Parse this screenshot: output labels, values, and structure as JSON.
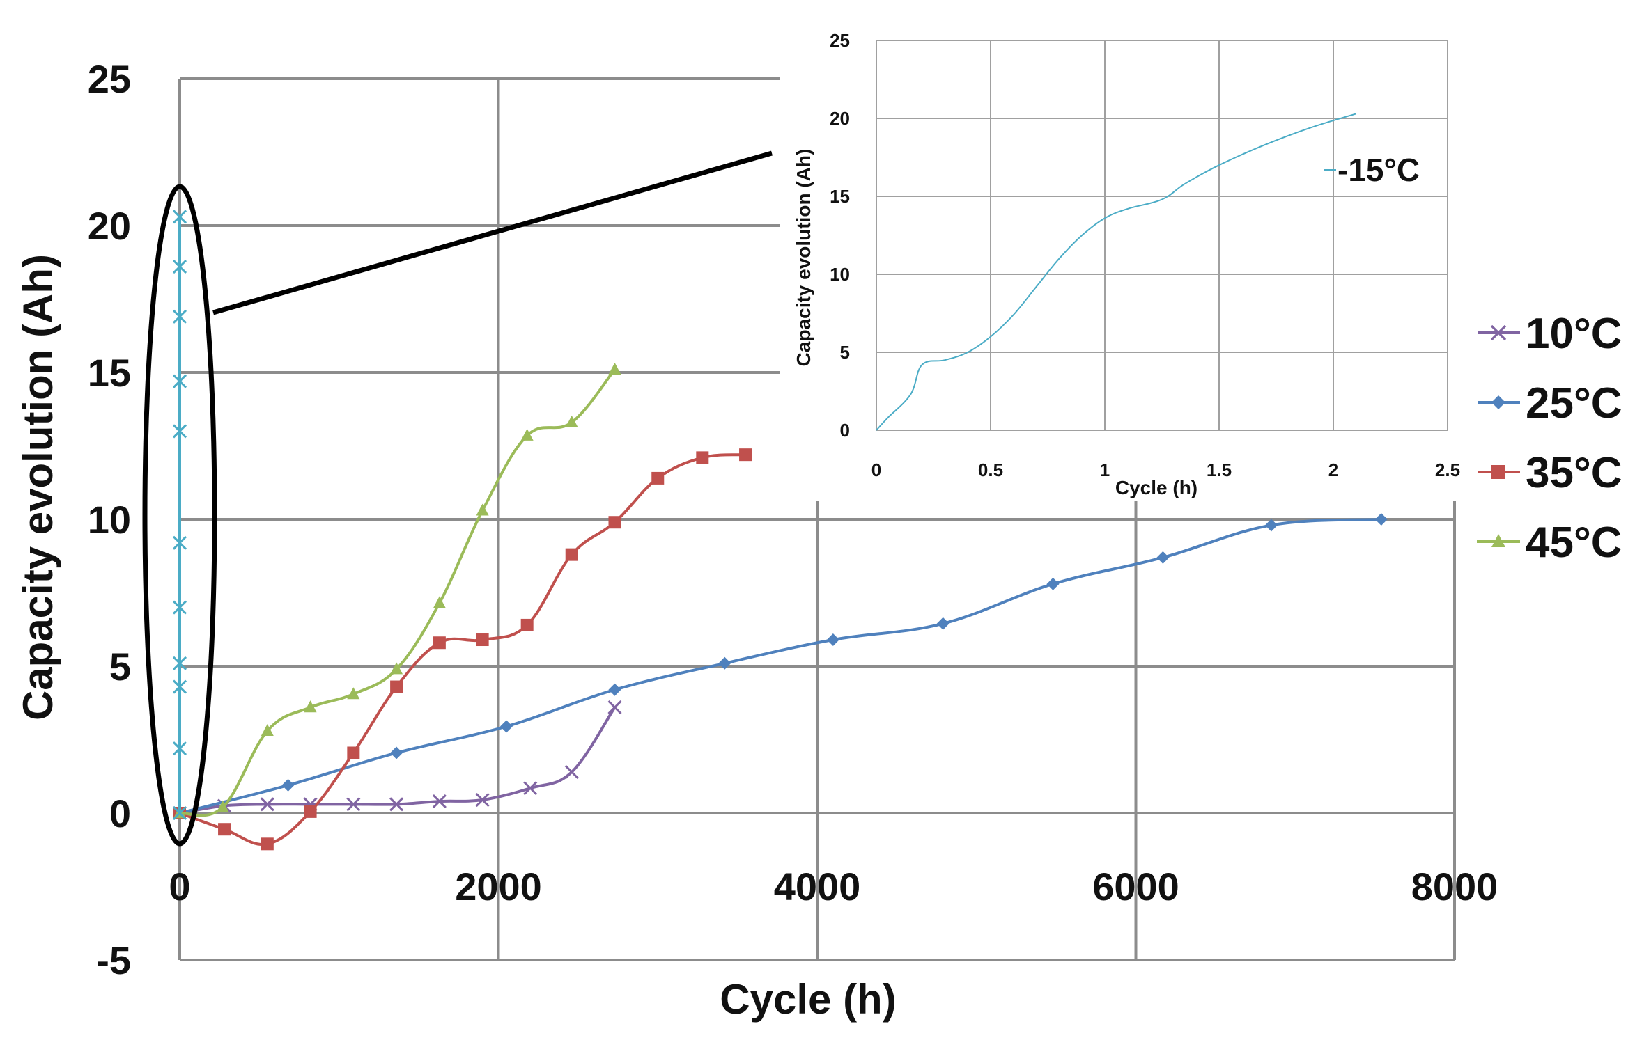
{
  "chart_data": [
    {
      "type": "line",
      "xlabel": "Cycle (h)",
      "ylabel": "Capacity evolution (Ah)",
      "xlim": [
        0,
        8000
      ],
      "ylim": [
        -5,
        25
      ],
      "x_ticks": [
        "0",
        "2000",
        "4000",
        "6000",
        "8000"
      ],
      "y_ticks": [
        "-5",
        "0",
        "5",
        "10",
        "15",
        "20",
        "25"
      ],
      "grid": true,
      "legend_position": "right",
      "series": [
        {
          "name": "10°C",
          "color": "#8064a2",
          "marker": "x",
          "x": [
            0,
            280,
            550,
            820,
            1090,
            1360,
            1630,
            1900,
            2200,
            2460,
            2730
          ],
          "y": [
            0,
            0.25,
            0.3,
            0.3,
            0.3,
            0.3,
            0.4,
            0.45,
            0.85,
            1.4,
            3.6
          ]
        },
        {
          "name": "25°C",
          "color": "#4f81bd",
          "marker": "diamond",
          "x": [
            0,
            680,
            1360,
            2050,
            2730,
            3420,
            4100,
            4790,
            5480,
            6170,
            6850,
            7540
          ],
          "y": [
            0,
            0.95,
            2.05,
            2.95,
            4.2,
            5.1,
            5.9,
            6.45,
            7.8,
            8.7,
            9.8,
            10
          ]
        },
        {
          "name": "35°C",
          "color": "#c0504d",
          "marker": "square",
          "x": [
            0,
            280,
            550,
            820,
            1090,
            1360,
            1630,
            1900,
            2180,
            2460,
            2730,
            3000,
            3280,
            3550
          ],
          "y": [
            0,
            -0.55,
            -1.05,
            0.05,
            2.05,
            4.3,
            5.8,
            5.9,
            6.4,
            8.8,
            9.9,
            11.4,
            12.1,
            12.2
          ]
        },
        {
          "name": "45°C",
          "color": "#9bbb59",
          "marker": "triangle",
          "x": [
            0,
            270,
            550,
            820,
            1090,
            1360,
            1630,
            1900,
            2180,
            2460,
            2730
          ],
          "y": [
            0,
            0.2,
            2.8,
            3.6,
            4.05,
            4.9,
            7.15,
            10.3,
            12.85,
            13.3,
            15.1
          ]
        },
        {
          "name": "-15°C",
          "color": "#4bacc6",
          "marker": "x",
          "x": [
            0,
            0.15,
            0.25,
            0.4,
            0.6,
            0.8,
            1.0,
            1.25,
            1.5,
            1.75,
            2.1
          ],
          "y": [
            0,
            2.2,
            4.3,
            5.1,
            7.0,
            9.2,
            13.0,
            14.7,
            16.9,
            18.6,
            20.3
          ]
        }
      ],
      "annotation": "ellipse around x=0 region magnified in inset"
    },
    {
      "type": "line",
      "title": "",
      "xlabel": "Cycle (h)",
      "ylabel": "Capacity evolution (Ah)",
      "xlim": [
        0,
        2.5
      ],
      "ylim": [
        0,
        25
      ],
      "x_ticks": [
        "0",
        "0.5",
        "1",
        "1.5",
        "2",
        "2.5"
      ],
      "y_ticks": [
        "0",
        "5",
        "10",
        "15",
        "20",
        "25"
      ],
      "grid": true,
      "series": [
        {
          "name": "-15°C",
          "color": "#4bacc6",
          "x": [
            0,
            0.05,
            0.15,
            0.2,
            0.3,
            0.4,
            0.5,
            0.6,
            0.7,
            0.8,
            0.9,
            1.0,
            1.1,
            1.25,
            1.35,
            1.5,
            1.7,
            1.9,
            2.1
          ],
          "y": [
            0,
            0.8,
            2.3,
            4.2,
            4.5,
            5.0,
            6.0,
            7.4,
            9.2,
            11.0,
            12.5,
            13.6,
            14.2,
            14.8,
            15.8,
            17.0,
            18.3,
            19.4,
            20.3
          ]
        }
      ]
    }
  ]
}
